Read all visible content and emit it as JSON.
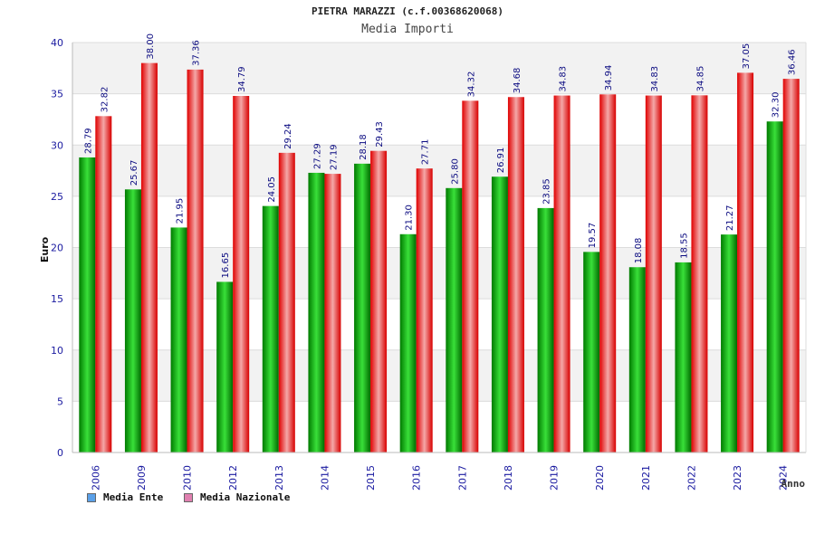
{
  "chart_data": {
    "type": "bar",
    "title": "PIETRA MARAZZI (c.f.00368620068)",
    "subtitle": "Media Importi",
    "xlabel": "Anno",
    "ylabel": "Euro",
    "ylim": [
      0,
      40
    ],
    "yticks": [
      "0",
      "5",
      "10",
      "15",
      "20",
      "25",
      "30",
      "35",
      "40"
    ],
    "grid": true,
    "legend_position": "bottom-left",
    "categories": [
      "2006",
      "2009",
      "2010",
      "2012",
      "2013",
      "2014",
      "2015",
      "2016",
      "2017",
      "2018",
      "2019",
      "2020",
      "2021",
      "2022",
      "2023",
      "2024"
    ],
    "series": [
      {
        "name": "Media Ente",
        "color": "#00b000",
        "legend_color": "#5aa0e8",
        "values": [
          28.79,
          25.67,
          21.95,
          16.65,
          24.05,
          27.29,
          28.18,
          21.3,
          25.8,
          26.91,
          23.85,
          19.57,
          18.08,
          18.55,
          21.27,
          32.3
        ],
        "labels": [
          "28.79",
          "25.67",
          "21.95",
          "16.65",
          "24.05",
          "27.29",
          "28.18",
          "21.30",
          "25.80",
          "26.91",
          "23.85",
          "19.57",
          "18.08",
          "18.55",
          "21.27",
          "32.30"
        ]
      },
      {
        "name": "Media Nazionale",
        "color": "#ee0000",
        "legend_color": "#e080b0",
        "values": [
          32.82,
          38.0,
          37.36,
          34.79,
          29.24,
          27.19,
          29.43,
          27.71,
          34.32,
          34.68,
          34.83,
          34.94,
          34.83,
          34.85,
          37.05,
          36.46
        ],
        "labels": [
          "32.82",
          "38.00",
          "37.36",
          "34.79",
          "29.24",
          "27.19",
          "29.43",
          "27.71",
          "34.32",
          "34.68",
          "34.83",
          "34.94",
          "34.83",
          "34.85",
          "37.05",
          "36.46"
        ]
      }
    ]
  }
}
